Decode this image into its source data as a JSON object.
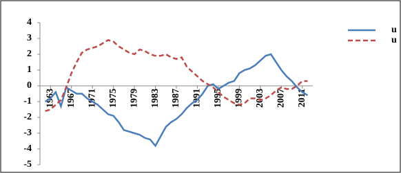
{
  "chart_data": {
    "type": "line",
    "x": [
      1962,
      1963,
      1964,
      1965,
      1966,
      1967,
      1968,
      1969,
      1970,
      1971,
      1972,
      1973,
      1974,
      1975,
      1976,
      1977,
      1978,
      1979,
      1980,
      1981,
      1982,
      1983,
      1984,
      1985,
      1986,
      1987,
      1988,
      1989,
      1990,
      1991,
      1992,
      1993,
      1994,
      1995,
      1996,
      1997,
      1998,
      1999,
      2000,
      2001,
      2002,
      2003,
      2004,
      2005,
      2006,
      2007,
      2008,
      2009,
      2010,
      2011,
      2012
    ],
    "series": [
      {
        "name": "u",
        "color": "#4a7ebb",
        "dash": false,
        "values": [
          -1.0,
          -0.8,
          -0.4,
          -1.3,
          -0.1,
          -0.3,
          -0.5,
          -0.5,
          -0.8,
          -1.0,
          -1.2,
          -1.5,
          -1.8,
          -1.9,
          -2.3,
          -2.8,
          -2.9,
          -3.0,
          -3.1,
          -3.3,
          -3.4,
          -3.8,
          -3.2,
          -2.6,
          -2.3,
          -2.1,
          -1.8,
          -1.4,
          -1.1,
          -0.9,
          -0.5,
          0.0,
          0.1,
          -0.2,
          0.0,
          0.2,
          0.3,
          0.8,
          1.0,
          1.1,
          1.3,
          1.6,
          1.9,
          2.0,
          1.5,
          1.0,
          0.6,
          0.3,
          -0.1,
          -0.4,
          -0.6
        ]
      },
      {
        "name": "u",
        "color": "#be4b48",
        "dash": true,
        "values": [
          -1.6,
          -1.5,
          -1.2,
          -0.9,
          -0.1,
          0.8,
          1.5,
          2.1,
          2.3,
          2.4,
          2.5,
          2.7,
          2.9,
          2.8,
          2.5,
          2.3,
          2.1,
          2.0,
          2.3,
          2.2,
          2.0,
          1.9,
          1.9,
          2.0,
          1.8,
          1.7,
          1.8,
          1.2,
          0.9,
          0.6,
          0.3,
          0.1,
          -0.1,
          -0.4,
          -0.7,
          -0.9,
          -1.1,
          -1.2,
          -1.1,
          -0.8,
          -0.8,
          -0.9,
          -0.8,
          -0.6,
          -0.3,
          -0.1,
          -0.2,
          -0.2,
          0.0,
          0.3,
          0.3
        ]
      }
    ],
    "xlim": [
      1961,
      2013
    ],
    "xticks": [
      1963,
      1967,
      1971,
      1975,
      1979,
      1983,
      1987,
      1991,
      1995,
      1999,
      2003,
      2007,
      2011
    ],
    "ylim": [
      -5,
      4
    ],
    "yticks": [
      -5,
      -4,
      -3,
      -2,
      -1,
      0,
      1,
      2,
      3,
      4
    ]
  }
}
